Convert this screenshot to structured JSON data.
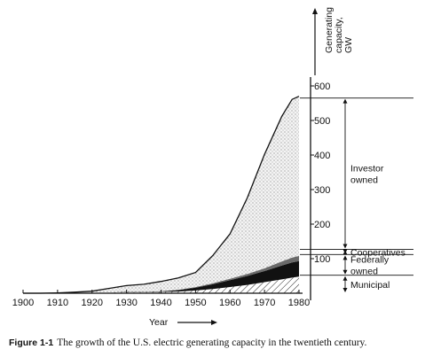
{
  "chart_data": {
    "type": "area",
    "stacked": true,
    "x_unit": "year",
    "x": [
      1900,
      1905,
      1910,
      1915,
      1920,
      1925,
      1930,
      1935,
      1940,
      1945,
      1950,
      1955,
      1960,
      1965,
      1970,
      1975,
      1978,
      1980
    ],
    "series": [
      {
        "name": "Municipal",
        "fill": "hatched",
        "values": [
          0,
          0,
          0,
          1,
          1,
          2,
          3,
          3,
          4,
          5,
          8,
          12,
          18,
          24,
          32,
          40,
          45,
          48
        ]
      },
      {
        "name": "Federally owned",
        "fill": "black",
        "values": [
          0,
          0,
          0,
          0,
          0,
          0,
          1,
          1,
          2,
          4,
          8,
          14,
          20,
          26,
          32,
          40,
          44,
          45
        ]
      },
      {
        "name": "Cooperatives",
        "fill": "gray",
        "values": [
          0,
          0,
          0,
          0,
          0,
          0,
          0,
          0,
          0,
          1,
          2,
          3,
          4,
          6,
          8,
          12,
          14,
          15
        ]
      },
      {
        "name": "Investor owned",
        "fill": "stippled",
        "values": [
          0,
          0,
          1,
          2,
          5,
          12,
          18,
          22,
          28,
          34,
          42,
          80,
          130,
          220,
          330,
          420,
          458,
          462
        ]
      }
    ],
    "ylabel": "Generating capacity, GW",
    "xlabel": "Year",
    "xlim": [
      1900,
      1980
    ],
    "ylim": [
      0,
      600
    ],
    "x_ticks": [
      1900,
      1910,
      1920,
      1930,
      1940,
      1950,
      1960,
      1970,
      1980
    ],
    "y_ticks": [
      100,
      200,
      300,
      400,
      500,
      600
    ],
    "axis_side": "right",
    "brackets": [
      {
        "label_lines": [
          "Investor",
          "owned"
        ],
        "from": 127,
        "to": 565
      },
      {
        "label_lines": [
          "Cooperatives"
        ],
        "from": 112,
        "to": 127
      },
      {
        "label_lines": [
          "Federally",
          "owned"
        ],
        "from": 52,
        "to": 112
      },
      {
        "label_lines": [
          "Municipal"
        ],
        "from": 0,
        "to": 52
      }
    ],
    "caption_number": "Figure 1-1",
    "caption_text": "The growth of the U.S. electric generating capacity in the twentieth century."
  }
}
